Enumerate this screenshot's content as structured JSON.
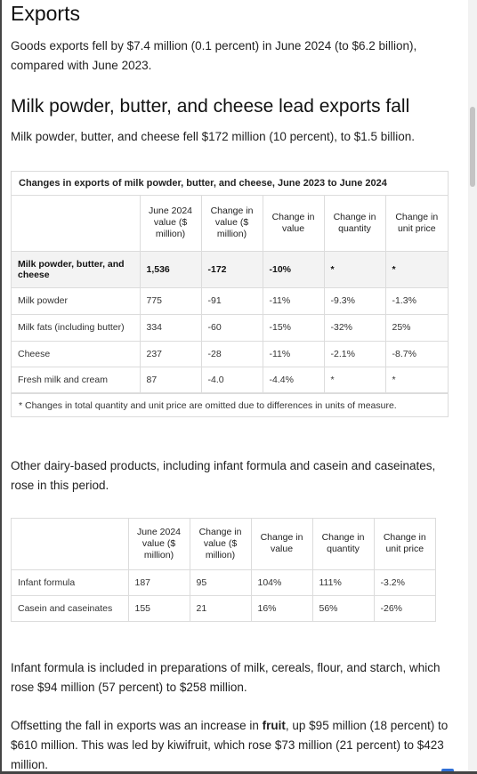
{
  "exports_heading": "Exports",
  "intro": "Goods exports fell by $7.4 million (0.1 percent) in June 2024 (to $6.2 billion), compared with June 2023.",
  "section_heading": "Milk powder, butter, and cheese lead exports fall",
  "section_summary": "Milk powder, butter, and cheese fell $172 million (10 percent), to $1.5 billion.",
  "table1": {
    "caption": "Changes in exports of milk powder, butter, and cheese, June 2023 to June 2024",
    "headers": [
      "",
      "June 2024 value ($ million)",
      "Change in value ($ million)",
      "Change in value",
      "Change in quantity",
      "Change in unit price"
    ],
    "rows": [
      [
        "Milk powder, butter, and cheese",
        "1,536",
        "-172",
        "-10%",
        "*",
        "*"
      ],
      [
        "Milk powder",
        "775",
        "-91",
        "-11%",
        "-9.3%",
        "-1.3%"
      ],
      [
        "Milk fats (including butter)",
        "334",
        "-60",
        "-15%",
        "-32%",
        "25%"
      ],
      [
        "Cheese",
        "237",
        "-28",
        "-11%",
        "-2.1%",
        "-8.7%"
      ],
      [
        "Fresh milk and cream",
        "87",
        "-4.0",
        "-4.4%",
        "*",
        "*"
      ]
    ],
    "note": "* Changes in total quantity and unit price are omitted due to differences in units of measure."
  },
  "other_dairy": "Other dairy-based products, including infant formula and casein and caseinates, rose in this period.",
  "table2": {
    "headers": [
      "",
      "June 2024 value ($ million)",
      "Change in value ($ million)",
      "Change in value",
      "Change in quantity",
      "Change in unit price"
    ],
    "rows": [
      [
        "Infant formula",
        "187",
        "95",
        "104%",
        "111%",
        "-3.2%"
      ],
      [
        "Casein and caseinates",
        "155",
        "21",
        "16%",
        "56%",
        "-26%"
      ]
    ]
  },
  "infant_note": "Infant formula is included in preparations of milk, cereals, flour, and starch, which rose $94 million (57 percent) to $258 million.",
  "fruit_para": {
    "before": "Offsetting the fall in exports was an increase in ",
    "bold": "fruit",
    "after": ", up $95 million (18 percent) to $610 million. This was led by kiwifruit, which rose $73 million (21 percent) to $423 million."
  }
}
